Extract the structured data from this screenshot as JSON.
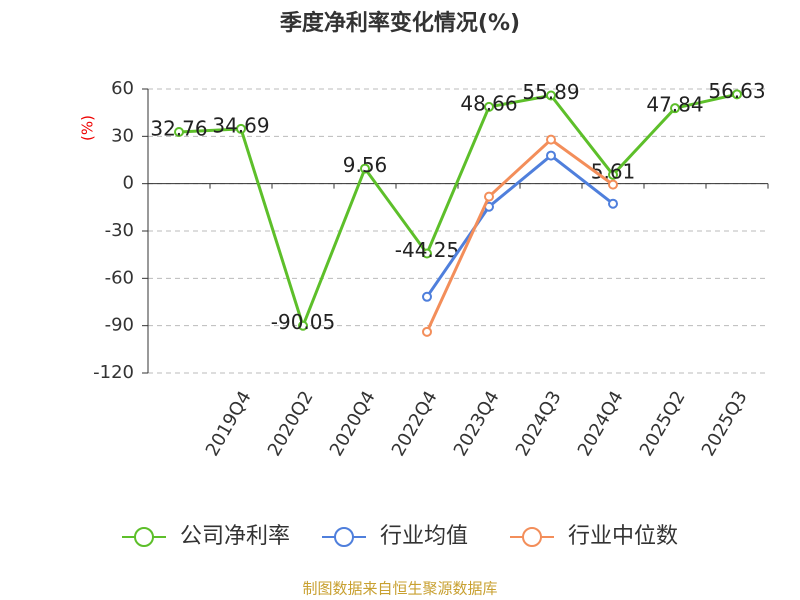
{
  "chart_data": {
    "type": "line",
    "title": "季度净利率变化情况(%)",
    "y_label": "(%)",
    "source": "制图数据来自恒生聚源数据库",
    "categories": [
      null,
      "2019Q4",
      "2020Q2",
      "2020Q4",
      "2022Q4",
      "2023Q4",
      "2024Q3",
      "2024Q4",
      "2025Q2",
      "2025Q3"
    ],
    "series": [
      {
        "name": "公司净利率",
        "color": "#5dbf2a",
        "labels": true,
        "values": [
          32.76,
          34.69,
          -90.05,
          9.56,
          -44.25,
          48.66,
          55.89,
          5.61,
          47.84,
          56.63
        ]
      },
      {
        "name": "行业均值",
        "color": "#4f7fdc",
        "values": [
          null,
          null,
          null,
          null,
          -71.7,
          -14.6,
          17.8,
          -12.7,
          null,
          null
        ]
      },
      {
        "name": "行业中位数",
        "color": "#f38e5a",
        "values": [
          null,
          null,
          null,
          null,
          -93.9,
          -8.2,
          27.9,
          -0.6,
          null,
          null
        ]
      }
    ],
    "ylim": [
      -120,
      60
    ],
    "yticks": [
      -120,
      -90,
      -60,
      -30,
      0,
      30,
      60
    ],
    "grid": true
  }
}
